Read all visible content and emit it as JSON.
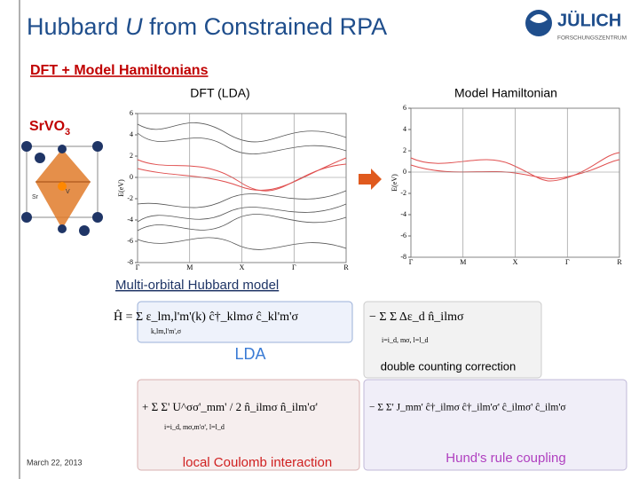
{
  "header": {
    "title_start": "Hubbard ",
    "title_italic": "U",
    "title_end": " from Constrained RPA",
    "logo": "JÜLICH",
    "logo_sub": "FORSCHUNGSZENTRUM"
  },
  "section": "DFT + Model Hamiltonians",
  "material": {
    "formula": "SrVO",
    "subscript": "3",
    "atom_labels": [
      "Sr",
      "V"
    ]
  },
  "plots": [
    {
      "title": "DFT (LDA)",
      "ylabel": "E(eV)",
      "yticks": [
        6,
        4,
        2,
        0,
        -2,
        -4,
        -6,
        -8
      ],
      "ylim": [
        -8,
        6
      ],
      "categories": [
        "Γ",
        "M",
        "X",
        "Γ",
        "R"
      ]
    },
    {
      "title": "Model Hamiltonian",
      "ylabel": "E(eV)",
      "yticks": [
        6,
        4,
        2,
        0,
        -2,
        -4,
        -6,
        -8
      ],
      "ylim": [
        -8,
        6
      ],
      "categories": [
        "Γ",
        "M",
        "X",
        "Γ",
        "R"
      ]
    }
  ],
  "model_title": "Multi-orbital Hubbard model",
  "equation": {
    "line1": "Ĥ  =  Σ  ε_lm,l'm'(k) ĉ†_klmσ ĉ_kl'm'σ",
    "line1_sum": "k,lm,l'm',σ",
    "line1_dc": "−  Σ Σ  Δε_d n̂_ilmσ",
    "line1_dc_sum": "i=i_d, mσ, l=l_d",
    "line2": "+  Σ  Σ'  U^σσ'_mm' / 2  n̂_ilmσ n̂_ilm'σ'",
    "line2_sum": "i=i_d, mσ,m'σ', l=l_d",
    "line2_j": "−  Σ  Σ'  J_mm' ĉ†_ilmσ ĉ†_ilm'σ' ĉ_ilmσ' ĉ_ilm'σ",
    "labels": {
      "lda": "LDA",
      "dc": "double counting correction",
      "coulomb": "local Coulomb interaction",
      "hund": "Hund's rule coupling"
    }
  },
  "footer": {
    "date": "March 22, 2013"
  }
}
